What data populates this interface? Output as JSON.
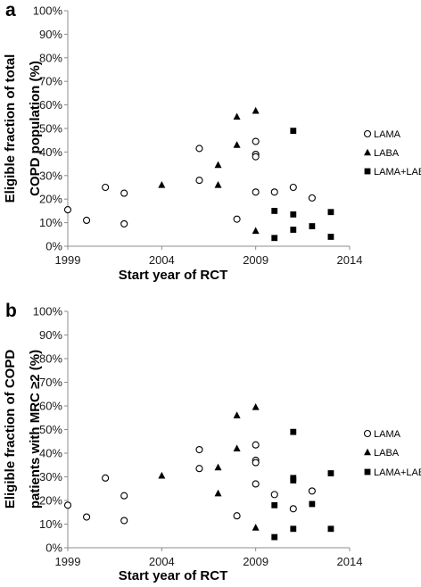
{
  "chart_data": [
    {
      "type": "scatter",
      "panel_label": "a",
      "title": "",
      "xlabel": "Start year of RCT",
      "ylabel_lines": [
        "Eligible fraction of total",
        "COPD population (%)"
      ],
      "xlim": [
        1999,
        2014
      ],
      "xticks": [
        1999,
        2004,
        2009,
        2014
      ],
      "ylim": [
        0,
        100
      ],
      "yticks": [
        0,
        10,
        20,
        30,
        40,
        50,
        60,
        70,
        80,
        90,
        100
      ],
      "ytick_labels": [
        "0%",
        "10%",
        "20%",
        "30%",
        "40%",
        "50%",
        "60%",
        "70%",
        "80%",
        "90%",
        "100%"
      ],
      "grid": false,
      "legend_position": "right",
      "series": [
        {
          "name": "LAMA",
          "marker": "open-circle",
          "points": [
            {
              "x": 1999,
              "y": 15.5
            },
            {
              "x": 2000,
              "y": 11
            },
            {
              "x": 2001,
              "y": 25
            },
            {
              "x": 2002,
              "y": 22.5
            },
            {
              "x": 2002,
              "y": 9.5
            },
            {
              "x": 2006,
              "y": 41.5
            },
            {
              "x": 2006,
              "y": 28
            },
            {
              "x": 2008,
              "y": 11.5
            },
            {
              "x": 2009,
              "y": 44.5
            },
            {
              "x": 2009,
              "y": 39
            },
            {
              "x": 2009,
              "y": 38
            },
            {
              "x": 2009,
              "y": 23
            },
            {
              "x": 2010,
              "y": 23
            },
            {
              "x": 2011,
              "y": 25
            },
            {
              "x": 2012,
              "y": 20.5
            }
          ]
        },
        {
          "name": "LABA",
          "marker": "filled-triangle",
          "points": [
            {
              "x": 2004,
              "y": 26
            },
            {
              "x": 2007,
              "y": 34.5
            },
            {
              "x": 2007,
              "y": 26
            },
            {
              "x": 2008,
              "y": 55
            },
            {
              "x": 2008,
              "y": 43
            },
            {
              "x": 2009,
              "y": 57.5
            },
            {
              "x": 2009,
              "y": 6.5
            }
          ]
        },
        {
          "name": "LAMA+LABA",
          "marker": "filled-square",
          "points": [
            {
              "x": 2010,
              "y": 15
            },
            {
              "x": 2010,
              "y": 3.5
            },
            {
              "x": 2011,
              "y": 49
            },
            {
              "x": 2011,
              "y": 13.5
            },
            {
              "x": 2011,
              "y": 7
            },
            {
              "x": 2012,
              "y": 8.5
            },
            {
              "x": 2013,
              "y": 14.5
            },
            {
              "x": 2013,
              "y": 4
            }
          ]
        }
      ]
    },
    {
      "type": "scatter",
      "panel_label": "b",
      "title": "",
      "xlabel": "Start year of RCT",
      "ylabel_lines": [
        "Eligible fraction of COPD",
        "patients with MRC ≥2 (%)"
      ],
      "xlim": [
        1999,
        2014
      ],
      "xticks": [
        1999,
        2004,
        2009,
        2014
      ],
      "ylim": [
        0,
        100
      ],
      "yticks": [
        0,
        10,
        20,
        30,
        40,
        50,
        60,
        70,
        80,
        90,
        100
      ],
      "ytick_labels": [
        "0%",
        "10%",
        "20%",
        "30%",
        "40%",
        "50%",
        "60%",
        "70%",
        "80%",
        "90%",
        "100%"
      ],
      "grid": false,
      "legend_position": "right",
      "series": [
        {
          "name": "LAMA",
          "marker": "open-circle",
          "points": [
            {
              "x": 1999,
              "y": 18
            },
            {
              "x": 2000,
              "y": 13
            },
            {
              "x": 2001,
              "y": 29.5
            },
            {
              "x": 2002,
              "y": 22
            },
            {
              "x": 2002,
              "y": 11.5
            },
            {
              "x": 2006,
              "y": 41.5
            },
            {
              "x": 2006,
              "y": 33.5
            },
            {
              "x": 2008,
              "y": 13.5
            },
            {
              "x": 2009,
              "y": 43.5
            },
            {
              "x": 2009,
              "y": 37
            },
            {
              "x": 2009,
              "y": 36
            },
            {
              "x": 2009,
              "y": 27
            },
            {
              "x": 2010,
              "y": 22.5
            },
            {
              "x": 2011,
              "y": 16.5
            },
            {
              "x": 2012,
              "y": 24
            }
          ]
        },
        {
          "name": "LABA",
          "marker": "filled-triangle",
          "points": [
            {
              "x": 2004,
              "y": 30.5
            },
            {
              "x": 2007,
              "y": 34
            },
            {
              "x": 2007,
              "y": 23
            },
            {
              "x": 2008,
              "y": 56
            },
            {
              "x": 2008,
              "y": 42
            },
            {
              "x": 2009,
              "y": 59.5
            },
            {
              "x": 2009,
              "y": 8.5
            }
          ]
        },
        {
          "name": "LAMA+LABA",
          "marker": "filled-square",
          "points": [
            {
              "x": 2010,
              "y": 18
            },
            {
              "x": 2010,
              "y": 4.5
            },
            {
              "x": 2011,
              "y": 49
            },
            {
              "x": 2011,
              "y": 29.5
            },
            {
              "x": 2011,
              "y": 28.5
            },
            {
              "x": 2011,
              "y": 8
            },
            {
              "x": 2012,
              "y": 18.5
            },
            {
              "x": 2013,
              "y": 31.5
            },
            {
              "x": 2013,
              "y": 8
            }
          ]
        }
      ]
    }
  ]
}
